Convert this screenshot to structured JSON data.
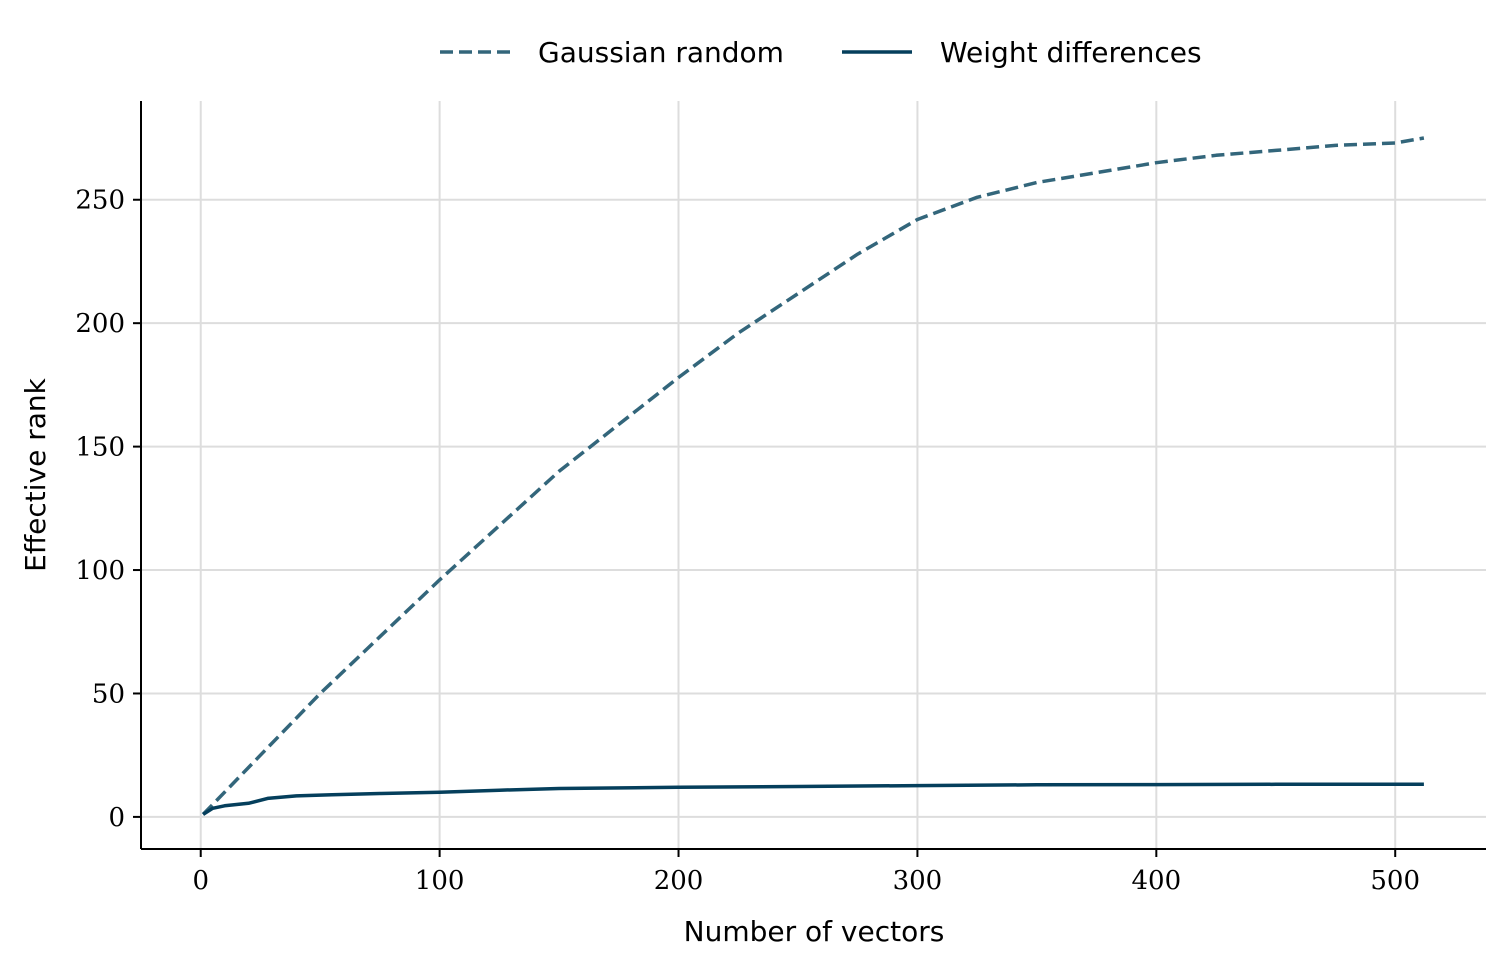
{
  "chart_data": {
    "type": "line",
    "title": "",
    "xlabel": "Number of vectors",
    "ylabel": "Effective rank",
    "xlim": [
      -25,
      538
    ],
    "ylim": [
      -13,
      290
    ],
    "xticks": [
      0,
      100,
      200,
      300,
      400,
      500
    ],
    "yticks": [
      0,
      50,
      100,
      150,
      200,
      250
    ],
    "grid": true,
    "legend": "top-center",
    "series": [
      {
        "name": "Gaussian random",
        "style": "dashed",
        "color": "#33667b",
        "x": [
          1,
          10,
          25,
          50,
          75,
          100,
          125,
          150,
          175,
          200,
          225,
          250,
          275,
          300,
          325,
          350,
          375,
          400,
          425,
          450,
          475,
          500,
          512
        ],
        "y": [
          1,
          10,
          25,
          50,
          73,
          96,
          118,
          140,
          159,
          178,
          196,
          212,
          228,
          242,
          251,
          257,
          261,
          265,
          268,
          270,
          272,
          273,
          275
        ]
      },
      {
        "name": "Weight differences",
        "style": "solid",
        "color": "#053f5c",
        "x": [
          1,
          5,
          10,
          20,
          28,
          40,
          55,
          75,
          100,
          125,
          150,
          200,
          250,
          300,
          350,
          400,
          450,
          500,
          512
        ],
        "y": [
          1,
          3.5,
          4.5,
          5.5,
          7.5,
          8.5,
          9,
          9.5,
          10,
          10.8,
          11.5,
          12,
          12.3,
          12.7,
          13,
          13.1,
          13.2,
          13.2,
          13.2
        ]
      }
    ]
  }
}
